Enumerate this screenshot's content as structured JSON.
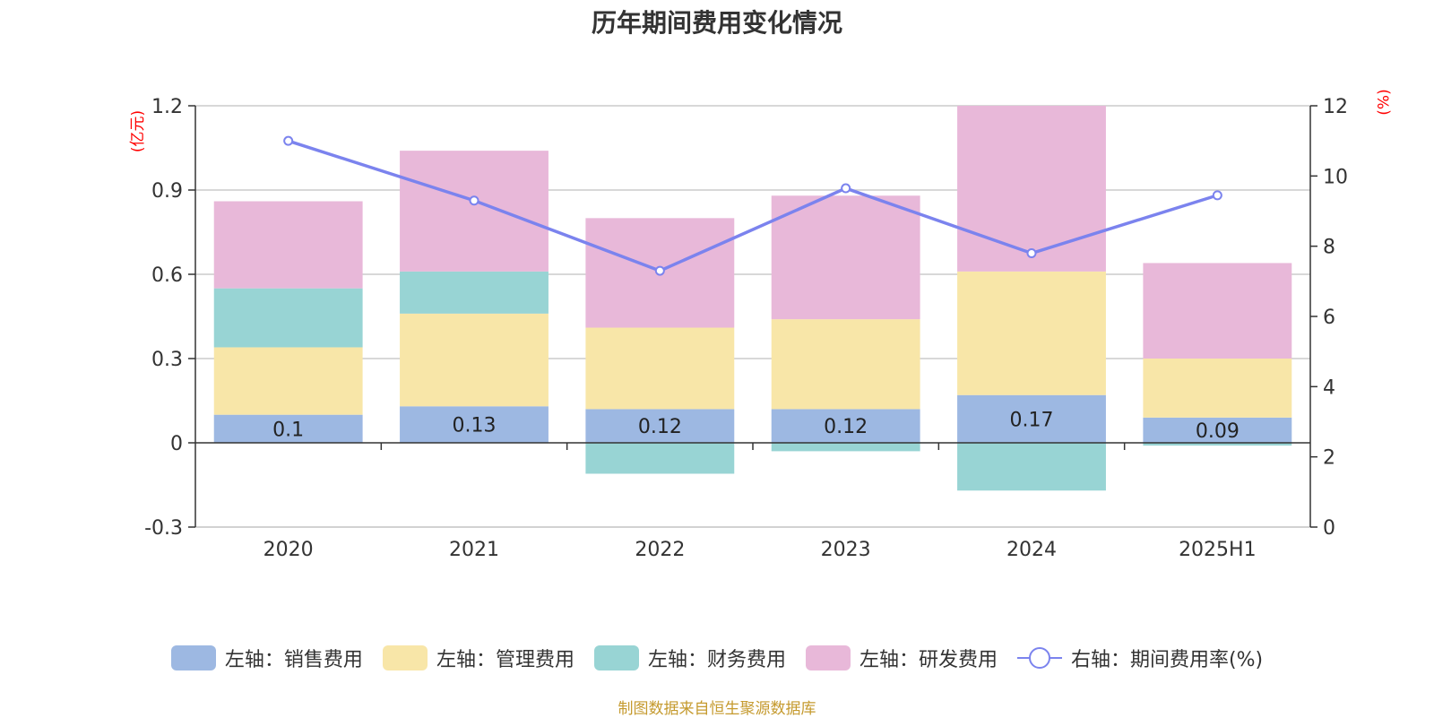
{
  "title": "历年期间费用变化情况",
  "source": "制图数据来自恒生聚源数据库",
  "units": {
    "left": "(亿元)",
    "right": "(%)"
  },
  "colors": {
    "sales": "#9db8e2",
    "admin": "#f8e6a8",
    "finance": "#98d4d4",
    "rd": "#e8b8d9",
    "rate": "#7b83ee",
    "grid": "#cccccc",
    "axis": "#333333",
    "unit": "#ff0000"
  },
  "chart_data": {
    "type": "bar",
    "stacked": true,
    "categories": [
      "2020",
      "2021",
      "2022",
      "2023",
      "2024",
      "2025H1"
    ],
    "left_axis": {
      "min": -0.3,
      "max": 1.2,
      "ticks": [
        "1.2",
        "0.9",
        "0.6",
        "0.3",
        "0",
        "-0.3"
      ]
    },
    "right_axis": {
      "min": 0,
      "max": 12,
      "ticks": [
        "12",
        "10",
        "8",
        "6",
        "4",
        "2",
        "0"
      ]
    },
    "series": [
      {
        "name": "左轴：销售费用",
        "key": "sales",
        "axis": "left",
        "values": [
          0.1,
          0.13,
          0.12,
          0.12,
          0.17,
          0.09
        ],
        "labels": [
          "0.1",
          "0.13",
          "0.12",
          "0.12",
          "0.17",
          "0.09"
        ]
      },
      {
        "name": "左轴：管理费用",
        "key": "admin",
        "axis": "left",
        "values": [
          0.24,
          0.33,
          0.29,
          0.32,
          0.44,
          0.21
        ]
      },
      {
        "name": "左轴：财务费用",
        "key": "finance",
        "axis": "left",
        "values": [
          0.21,
          0.15,
          -0.11,
          -0.03,
          -0.17,
          -0.01
        ]
      },
      {
        "name": "左轴：研发费用",
        "key": "rd",
        "axis": "left",
        "values": [
          0.31,
          0.43,
          0.39,
          0.44,
          0.59,
          0.34
        ]
      },
      {
        "name": "右轴：期间费用率(%)",
        "key": "rate",
        "axis": "right",
        "type": "line",
        "values": [
          11.0,
          9.3,
          7.3,
          9.65,
          7.8,
          9.45
        ]
      }
    ],
    "grid": true,
    "legend_position": "bottom"
  }
}
